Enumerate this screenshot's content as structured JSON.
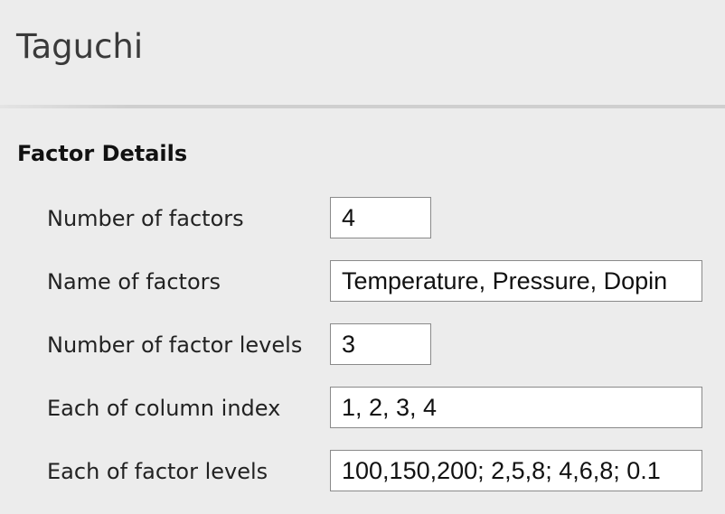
{
  "header": {
    "title": "Taguchi"
  },
  "section": {
    "title": "Factor Details"
  },
  "fields": {
    "number_of_factors": {
      "label": "Number of factors",
      "value": "4"
    },
    "name_of_factors": {
      "label": "Name of factors",
      "value": "Temperature, Pressure, Dopin"
    },
    "number_of_factor_levels": {
      "label": "Number of factor levels",
      "value": "3"
    },
    "column_index": {
      "label": "Each of column index",
      "value": "1, 2, 3, 4"
    },
    "factor_levels": {
      "label": "Each of factor levels",
      "value": "100,150,200; 2,5,8; 4,6,8; 0.1"
    }
  }
}
